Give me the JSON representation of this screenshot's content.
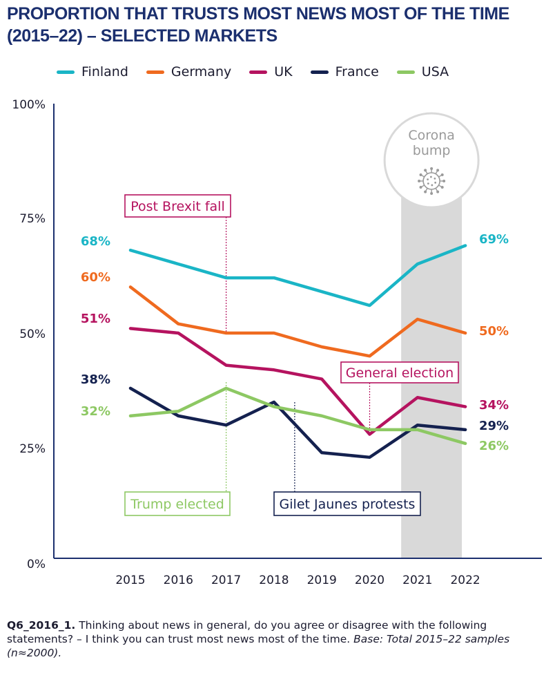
{
  "title": {
    "line1": "PROPORTION THAT TRUSTS MOST NEWS MOST OF THE TIME",
    "line2": "(2015–22) – SELECTED MARKETS"
  },
  "colors": {
    "Finland": "#1ab5c6",
    "Germany": "#ef6a1f",
    "UK": "#b5135f",
    "France": "#14214f",
    "USA": "#8dc863",
    "axis": "#1b2f6e",
    "shade": "#d9d9d9"
  },
  "chart_data": {
    "type": "line",
    "categories": [
      "2015",
      "2016",
      "2017",
      "2018",
      "2019",
      "2020",
      "2021",
      "2022"
    ],
    "yticks": [
      "0%",
      "25%",
      "50%",
      "75%",
      "100%"
    ],
    "ylim": [
      0,
      100
    ],
    "legend_position": "top",
    "grid": false,
    "series": [
      {
        "name": "Finland",
        "values": [
          68,
          65,
          62,
          62,
          59,
          56,
          65,
          69
        ],
        "start_label": "68%",
        "end_label": "69%"
      },
      {
        "name": "Germany",
        "values": [
          60,
          52,
          50,
          50,
          47,
          45,
          53,
          50
        ],
        "start_label": "60%",
        "end_label": "50%"
      },
      {
        "name": "UK",
        "values": [
          51,
          50,
          43,
          42,
          40,
          28,
          36,
          34
        ],
        "start_label": "51%",
        "end_label": "34%"
      },
      {
        "name": "France",
        "values": [
          38,
          32,
          30,
          35,
          24,
          23,
          30,
          29
        ],
        "start_label": "38%",
        "end_label": "29%"
      },
      {
        "name": "USA",
        "values": [
          32,
          33,
          38,
          34,
          32,
          29,
          29,
          26
        ],
        "start_label": "32%",
        "end_label": "26%"
      }
    ],
    "shaded_band": {
      "label_line1": "Corona",
      "label_line2": "bump",
      "from_category": "2020",
      "to_category": "2022"
    },
    "annotations": [
      {
        "text": "Post Brexit fall",
        "category": "2017",
        "color_key": "UK"
      },
      {
        "text": "General election",
        "category": "2020",
        "color_key": "UK"
      },
      {
        "text": "Trump elected",
        "category": "2017",
        "color_key": "USA"
      },
      {
        "text": "Gilet Jaunes protests",
        "category": "2018",
        "color_key": "France"
      }
    ]
  },
  "footnote": {
    "code": "Q6_2016_1.",
    "question": " Thinking about news in general, do you agree or disagree with the following statements? – I think you can trust most news most of the time.",
    "base_label": " Base: Total 2015–22 samples (n≈2000)."
  }
}
